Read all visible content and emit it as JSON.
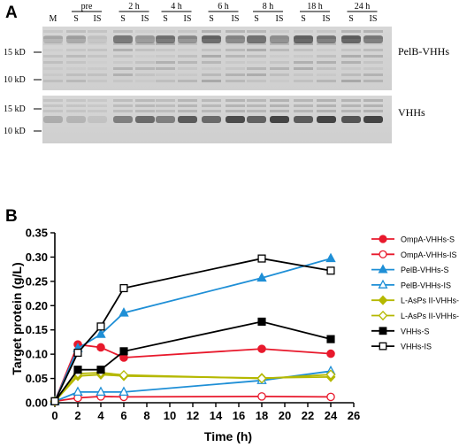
{
  "panel_a": {
    "label": "A",
    "lanes": [
      "M",
      "S",
      "IS",
      "S",
      "IS",
      "S",
      "IS",
      "S",
      "IS",
      "S",
      "IS",
      "S",
      "IS",
      "S",
      "IS"
    ],
    "timepoints": [
      "pre",
      "2 h",
      "4 h",
      "6 h",
      "8 h",
      "18 h",
      "24 h"
    ],
    "top_markers": [
      "15 kD",
      "10 kD"
    ],
    "bottom_markers": [
      "15 kD",
      "10 kD"
    ],
    "top_right_label": "PelB-VHHs",
    "bottom_right_label": "VHHs"
  },
  "panel_b": {
    "label": "B"
  },
  "chart_data": {
    "type": "line",
    "title": "",
    "xlabel": "Time (h)",
    "ylabel": "Target protein (g/L)",
    "xlim": [
      0,
      26
    ],
    "ylim": [
      0,
      0.35
    ],
    "xticks": [
      "0",
      "2",
      "4",
      "6",
      "8",
      "10",
      "12",
      "14",
      "16",
      "18",
      "20",
      "22",
      "24",
      "26"
    ],
    "yticks": [
      "0.00",
      "0.05",
      "0.10",
      "0.15",
      "0.20",
      "0.25",
      "0.30",
      "0.35"
    ],
    "grid": false,
    "legend_position": "right",
    "x": [
      0,
      2,
      4,
      6,
      18,
      24
    ],
    "series": [
      {
        "name": "OmpA-VHHs-S",
        "color": "#e8192c",
        "marker": "circle-filled",
        "values": [
          0.003,
          0.12,
          0.114,
          0.093,
          0.111,
          0.101
        ]
      },
      {
        "name": "OmpA-VHHs-IS",
        "color": "#e8192c",
        "marker": "circle-open",
        "values": [
          0.003,
          0.01,
          0.013,
          0.012,
          0.013,
          0.012
        ]
      },
      {
        "name": "PelB-VHHs-S",
        "color": "#1f8fd6",
        "marker": "triangle-filled",
        "values": [
          0.003,
          0.112,
          0.141,
          0.185,
          0.257,
          0.297
        ]
      },
      {
        "name": "PelB-VHHs-IS",
        "color": "#1f8fd6",
        "marker": "triangle-open",
        "values": [
          0.003,
          0.022,
          0.022,
          0.022,
          0.046,
          0.065
        ]
      },
      {
        "name": "L-AsPs II-VHHs-S",
        "color": "#b5b800",
        "marker": "diamond-filled",
        "values": [
          0.003,
          0.055,
          0.058,
          0.055,
          0.051,
          0.053
        ]
      },
      {
        "name": "L-AsPs II-VHHs-IS",
        "color": "#b5b800",
        "marker": "diamond-open",
        "values": [
          0.003,
          0.06,
          0.062,
          0.057,
          0.05,
          0.058
        ]
      },
      {
        "name": "VHHs-S",
        "color": "#000000",
        "marker": "square-filled",
        "values": [
          0.003,
          0.068,
          0.068,
          0.106,
          0.167,
          0.131
        ]
      },
      {
        "name": "VHHs-IS",
        "color": "#000000",
        "marker": "square-open",
        "values": [
          0.003,
          0.103,
          0.157,
          0.236,
          0.297,
          0.272
        ]
      }
    ]
  }
}
